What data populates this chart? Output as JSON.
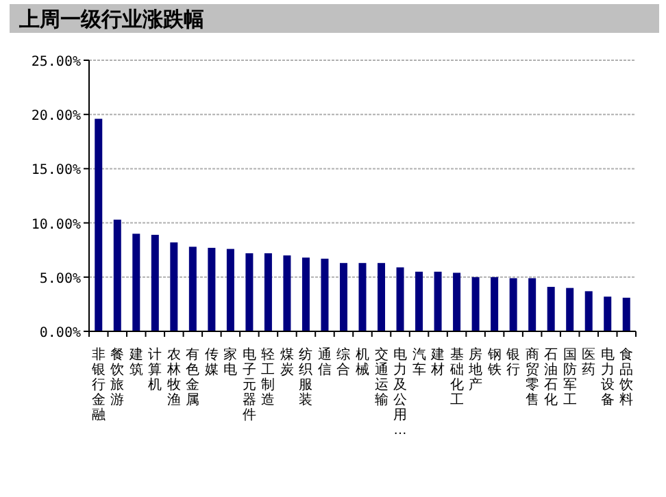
{
  "chart_data": {
    "type": "bar",
    "title": "上周一级行业涨跌幅",
    "categories": [
      "非银行金融",
      "餐饮旅游",
      "建筑",
      "计算机",
      "农林牧渔",
      "有色金属",
      "传媒",
      "家电",
      "电子元器件",
      "轻工制造",
      "煤炭",
      "纺织服装",
      "通信",
      "综合",
      "机械",
      "交通运输",
      "电力及公用…",
      "汽车",
      "建材",
      "基础化工",
      "房地产",
      "钢铁",
      "银行",
      "商贸零售",
      "石油石化",
      "国防军工",
      "医药",
      "电力设备",
      "食品饮料"
    ],
    "values": [
      19.6,
      10.3,
      9.0,
      8.9,
      8.2,
      7.8,
      7.7,
      7.6,
      7.2,
      7.2,
      7.0,
      6.8,
      6.7,
      6.3,
      6.3,
      6.3,
      5.9,
      5.5,
      5.5,
      5.4,
      5.0,
      5.0,
      4.9,
      4.9,
      4.1,
      4.0,
      3.7,
      3.2,
      3.1
    ],
    "color": "#000080",
    "ylim": [
      0,
      25
    ],
    "yticks": [
      {
        "value": 0,
        "label": "0.00%"
      },
      {
        "value": 5,
        "label": "5.00%"
      },
      {
        "value": 10,
        "label": "10.00%"
      },
      {
        "value": 15,
        "label": "15.00%"
      },
      {
        "value": 20,
        "label": "20.00%"
      },
      {
        "value": 25,
        "label": "25.00%"
      }
    ],
    "grid": "y"
  }
}
